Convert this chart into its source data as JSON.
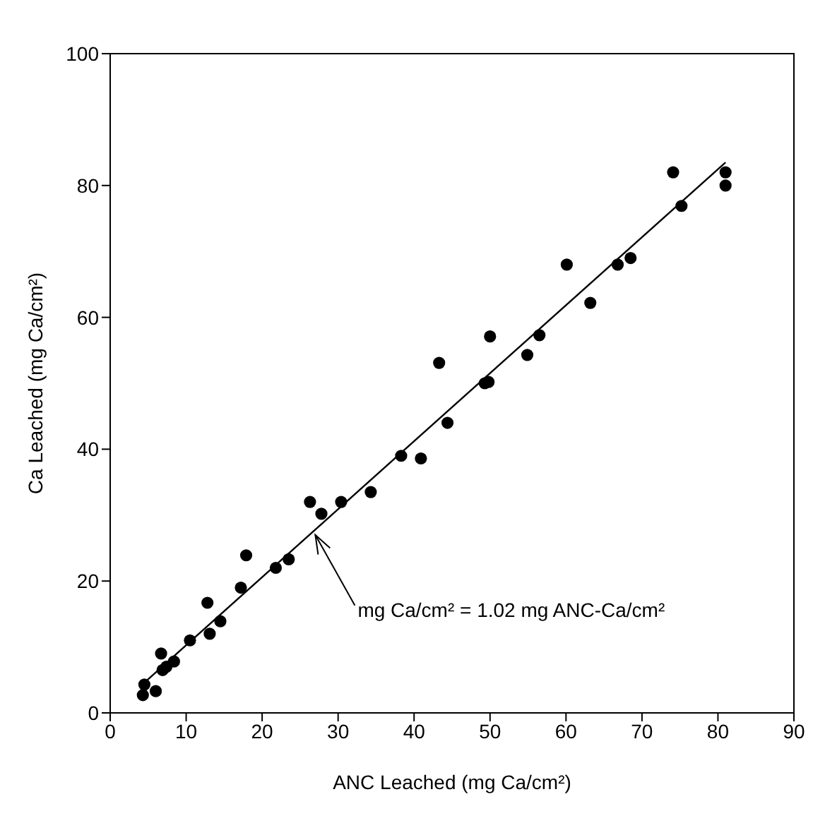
{
  "chart_data": {
    "type": "scatter",
    "xlabel": "ANC Leached (mg Ca/cm²)",
    "ylabel": "Ca Leached (mg Ca/cm²)",
    "xlim": [
      0,
      90
    ],
    "xticks": [
      0,
      10,
      20,
      30,
      40,
      50,
      60,
      70,
      80,
      90
    ],
    "ylim": [
      0,
      100
    ],
    "yticks": [
      0,
      20,
      40,
      60,
      80,
      100
    ],
    "grid": false,
    "legend": false,
    "marker": "circle",
    "series": [
      {
        "color": "#000000",
        "x": [
          4.3,
          4.5,
          6.0,
          6.7,
          6.9,
          7.4,
          8.4,
          10.5,
          12.8,
          13.1,
          14.5,
          17.2,
          17.9,
          21.8,
          23.5,
          26.3,
          27.8,
          30.4,
          34.3,
          38.3,
          40.9,
          43.3,
          44.4,
          49.3,
          49.8,
          50.0,
          54.9,
          56.5,
          60.1,
          63.2,
          66.8,
          68.5,
          74.1,
          75.2,
          81.0,
          81.0
        ],
        "values": [
          2.7,
          4.3,
          3.3,
          9.0,
          6.5,
          7.0,
          7.8,
          11.0,
          16.7,
          12.0,
          13.9,
          19.0,
          23.9,
          22.0,
          23.3,
          32.0,
          30.2,
          32.0,
          33.5,
          39.0,
          38.6,
          53.1,
          44.0,
          50.0,
          50.2,
          57.1,
          54.3,
          57.3,
          68.0,
          62.2,
          68.0,
          69.0,
          82.0,
          76.9,
          80.0,
          82.0
        ]
      },
      {
        "type": "line",
        "color": "#000000",
        "marker": "none",
        "line_style": "solid",
        "x": [
          4.5,
          81.0
        ],
        "values": [
          4.6,
          83.5
        ]
      }
    ],
    "annotations": [
      {
        "text": "mg Ca/cm² = 1.02 mg ANC-Ca/cm²",
        "x": 27,
        "y": 27
      }
    ]
  }
}
